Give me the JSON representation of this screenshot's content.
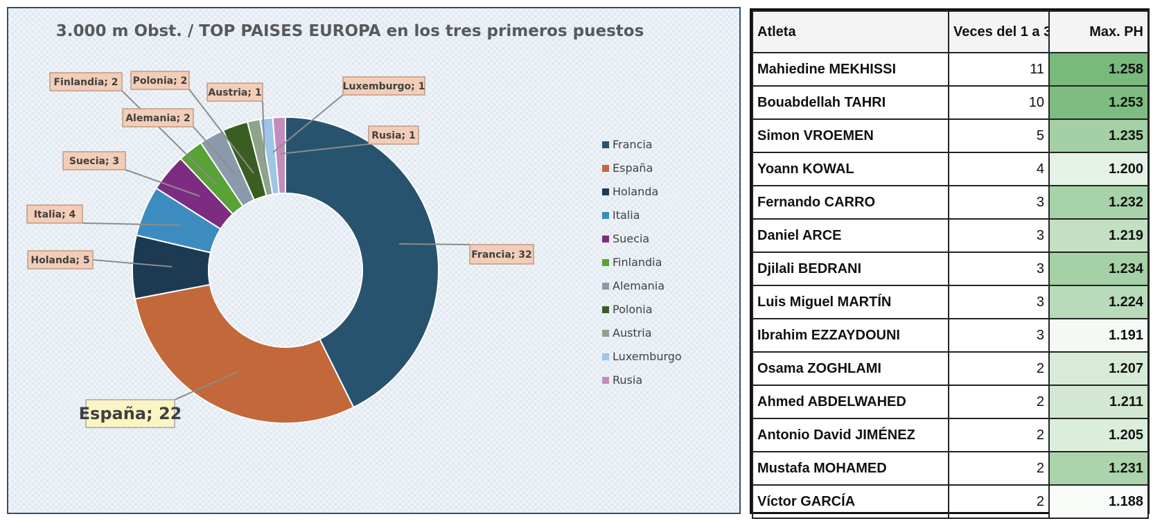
{
  "chart_data": {
    "type": "pie",
    "variant": "doughnut",
    "title": "3.000 m Obst. / TOP  PAISES EUROPA en los tres primeros puestos",
    "categories": [
      "Francia",
      "España",
      "Holanda",
      "Italia",
      "Suecia",
      "Finlandia",
      "Alemania",
      "Polonia",
      "Austria",
      "Luxemburgo",
      "Rusia"
    ],
    "values": [
      32,
      22,
      5,
      4,
      3,
      2,
      2,
      2,
      1,
      1,
      1
    ],
    "colors": [
      "#27536f",
      "#c2683a",
      "#1c3a52",
      "#3d8cbf",
      "#7d2c82",
      "#58a236",
      "#8b9aab",
      "#3a5e22",
      "#8fa38a",
      "#9ec5e6",
      "#c28dbd"
    ],
    "data_labels": [
      "Francia; 32",
      "España; 22",
      "Holanda; 5",
      "Italia; 4",
      "Suecia; 3",
      "Finlandia; 2",
      "Alemania; 2",
      "Polonia; 2",
      "Austria; 1",
      "Luxemburgo; 1",
      "Rusia; 1"
    ],
    "legend_position": "right"
  },
  "table": {
    "headers": [
      "Atleta",
      "Veces del 1 a 3",
      "Max. PH"
    ],
    "rows": [
      {
        "name": "Mahiedine MEKHISSI",
        "count": "11",
        "max": "1.258",
        "color": "#78b97c"
      },
      {
        "name": "Bouabdellah TAHRI",
        "count": "10",
        "max": "1.253",
        "color": "#7dbd81"
      },
      {
        "name": "Simon VROEMEN",
        "count": "5",
        "max": "1.235",
        "color": "#a3d0a4"
      },
      {
        "name": "Yoann KOWAL",
        "count": "4",
        "max": "1.200",
        "color": "#e6f2e6"
      },
      {
        "name": "Fernando CARRO",
        "count": "3",
        "max": "1.232",
        "color": "#a8d3aa"
      },
      {
        "name": "Daniel ARCE",
        "count": "3",
        "max": "1.219",
        "color": "#c3e0c3"
      },
      {
        "name": "Djilali BEDRANI",
        "count": "3",
        "max": "1.234",
        "color": "#a5d1a6"
      },
      {
        "name": "Luis Miguel MARTÍN",
        "count": "3",
        "max": "1.224",
        "color": "#b8dbb9"
      },
      {
        "name": "Ibrahim EZZAYDOUNI",
        "count": "3",
        "max": "1.191",
        "color": "#f4f9f4"
      },
      {
        "name": "Osama ZOGHLAMI",
        "count": "2",
        "max": "1.207",
        "color": "#d8ebd8"
      },
      {
        "name": "Ahmed ABDELWAHED",
        "count": "2",
        "max": "1.211",
        "color": "#d2e8d2"
      },
      {
        "name": "Antonio David JIMÉNEZ",
        "count": "2",
        "max": "1.205",
        "color": "#dbeddb"
      },
      {
        "name": "Mustafa MOHAMED",
        "count": "2",
        "max": "1.231",
        "color": "#abd4ac"
      },
      {
        "name": "Víctor GARCÍA",
        "count": "2",
        "max": "1.188",
        "color": "#f8fcf8"
      }
    ]
  }
}
